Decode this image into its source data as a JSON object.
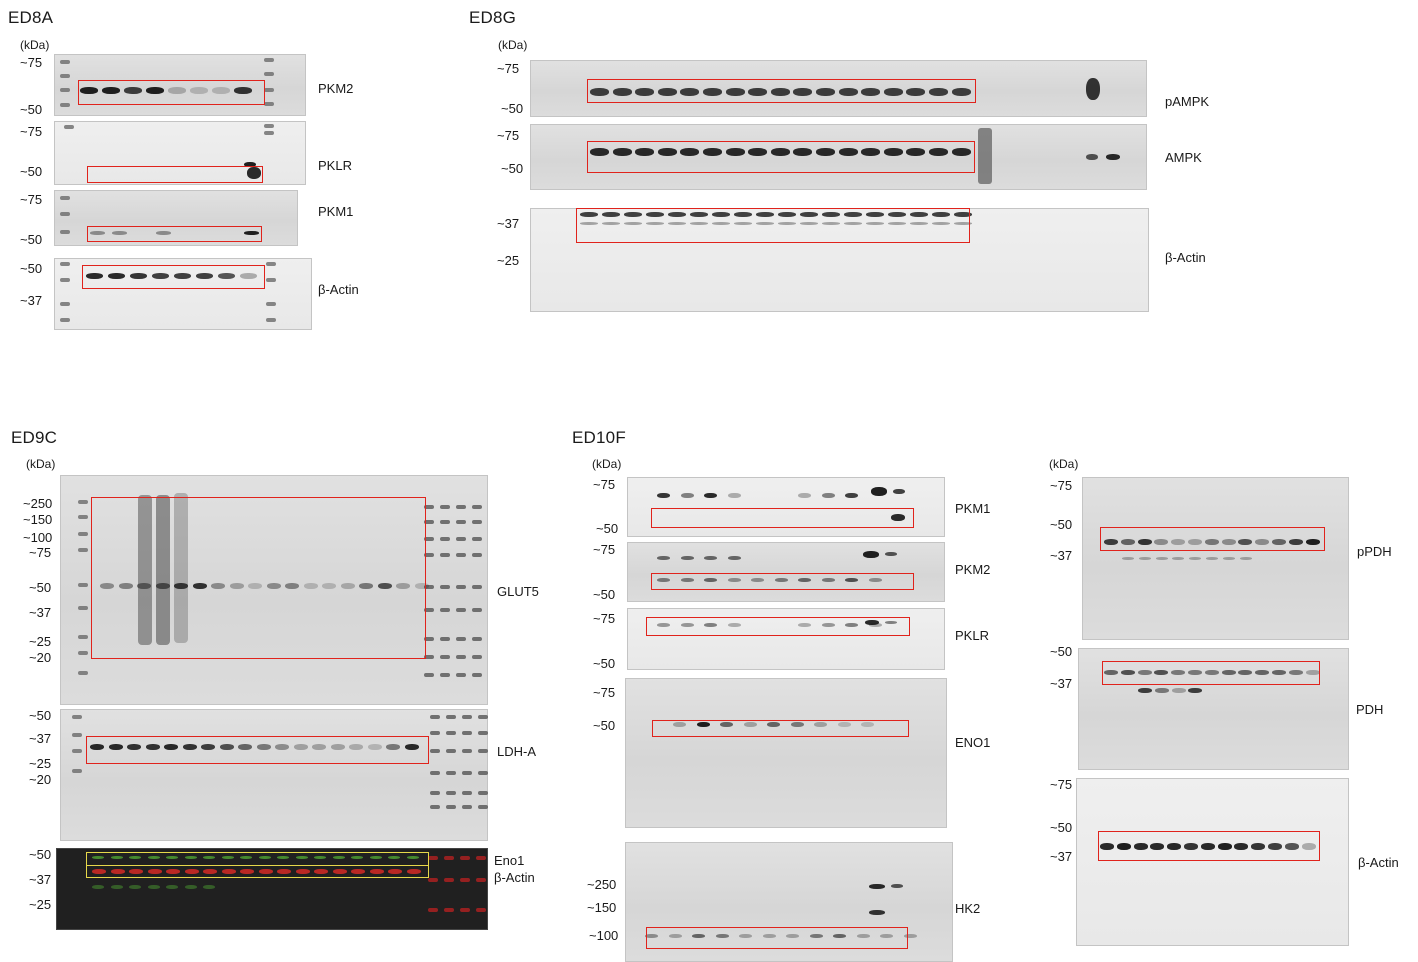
{
  "figures": [
    {
      "id": "ED8A",
      "label": "ED8A",
      "unit": "(kDa)",
      "markers": [
        "~75",
        "~50",
        "~75",
        "~50",
        "~75",
        "~50",
        "~50",
        "~37"
      ],
      "targets": [
        "PKM2",
        "PKLR",
        "PKM1",
        "β-Actin"
      ]
    },
    {
      "id": "ED8G",
      "label": "ED8G",
      "unit": "(kDa)",
      "markers": [
        "~75",
        "~50",
        "~75",
        "~50",
        "~37",
        "~25"
      ],
      "targets": [
        "pAMPK",
        "AMPK",
        "β-Actin"
      ]
    },
    {
      "id": "ED9C",
      "label": "ED9C",
      "unit": "(kDa)",
      "markers": [
        "~250",
        "~150",
        "~100",
        "~75",
        "~50",
        "~37",
        "~25",
        "~20",
        "~50",
        "~37",
        "~25",
        "~20",
        "~50",
        "~37",
        "~25"
      ],
      "targets": [
        "GLUT5",
        "LDH-A",
        "Eno1",
        "β-Actin"
      ]
    },
    {
      "id": "ED10F",
      "label": "ED10F",
      "unit": "(kDa)",
      "markers": [
        "~75",
        "~50",
        "~75",
        "~50",
        "~75",
        "~50",
        "~75",
        "~50",
        "~250",
        "~150",
        "~100"
      ],
      "targets": [
        "PKM1",
        "PKM2",
        "PKLR",
        "ENO1",
        "HK2"
      ]
    },
    {
      "id": "ED10F-right",
      "label": "",
      "unit": "(kDa)",
      "markers": [
        "~75",
        "~50",
        "~37",
        "~50",
        "~37",
        "~75",
        "~50",
        "~37"
      ],
      "targets": [
        "pPDH",
        "PDH",
        "β-Actin"
      ]
    }
  ],
  "colors": {
    "highlight_box": "#e0231c",
    "highlight_box_secondary": "#e6d84a",
    "fluorescence_green": "#5fd13a",
    "fluorescence_red": "#e02a26",
    "band": "#141414"
  }
}
